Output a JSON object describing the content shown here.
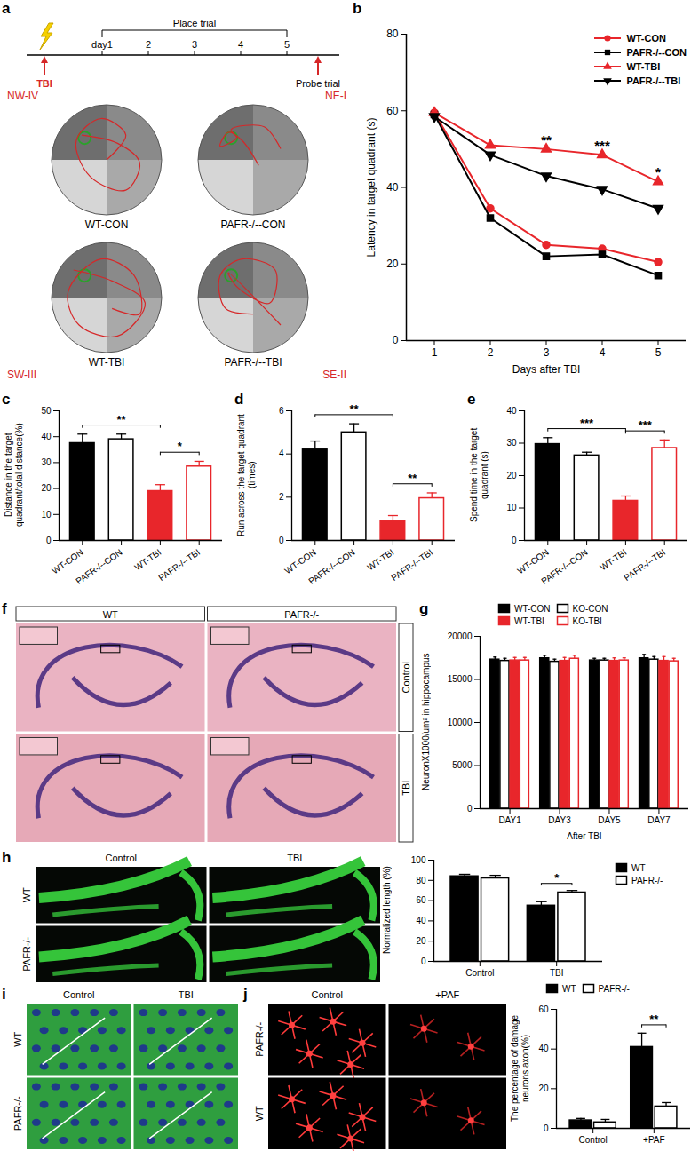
{
  "chart_data": [
    {
      "title": "b",
      "type": "line",
      "x_label": "Days after TBI",
      "y_label": "Latency in target quadrant (s)",
      "x": [
        1,
        2,
        3,
        4,
        5
      ],
      "xlim": [
        0.5,
        5.5
      ],
      "xticks": [
        1,
        2,
        3,
        4,
        5
      ],
      "ylim": [
        0,
        80
      ],
      "yticks": [
        0,
        20,
        40,
        60,
        80
      ],
      "legend": "top-right",
      "series": [
        {
          "name": "WT-CON",
          "color": "#e8262b",
          "marker": "circle",
          "values": [
            59.5,
            34.5,
            25,
            24,
            20.5
          ]
        },
        {
          "name": "PAFR-/--CON",
          "color": "#000000",
          "marker": "square",
          "values": [
            59,
            32,
            22,
            22.5,
            17
          ]
        },
        {
          "name": "WT-TBI",
          "color": "#e8262b",
          "marker": "triangle",
          "values": [
            59.5,
            51,
            50,
            48.5,
            41.5
          ]
        },
        {
          "name": "PAFR-/--TBI",
          "color": "#000000",
          "marker": "triangle-down",
          "values": [
            58.5,
            48.5,
            43,
            39.5,
            34.5
          ]
        }
      ],
      "annotations": [
        {
          "x": 3,
          "text": "**"
        },
        {
          "x": 4,
          "text": "***"
        },
        {
          "x": 5,
          "text": "*"
        }
      ]
    },
    {
      "title": "c",
      "type": "bar",
      "y_label": "Distance in the target quadrant/total distance(%)",
      "categories": [
        "WT-CON",
        "PAFR-/--CON",
        "WT-TBI",
        "PAFR-/--TBI"
      ],
      "values": [
        37.5,
        39,
        19,
        28.5
      ],
      "errors": [
        3.5,
        2,
        2.5,
        2
      ],
      "colors": [
        "#000000",
        "#ffffff",
        "#e8262b",
        "#ffffff"
      ],
      "ylim": [
        0,
        50
      ],
      "yticks": [
        0,
        10,
        20,
        30,
        40,
        50
      ],
      "annotations": [
        {
          "from": "WT-CON",
          "to": "WT-TBI",
          "text": "**"
        },
        {
          "from": "WT-TBI",
          "to": "PAFR-/--TBI",
          "text": "*"
        }
      ]
    },
    {
      "title": "d",
      "type": "bar",
      "y_label": "Run across the target quadrant (times)",
      "categories": [
        "WT-CON",
        "PAFR-/--CON",
        "WT-TBI",
        "PAFR-/--TBI"
      ],
      "values": [
        4.2,
        5.0,
        0.9,
        1.95
      ],
      "errors": [
        0.4,
        0.4,
        0.25,
        0.25
      ],
      "colors": [
        "#000000",
        "#ffffff",
        "#e8262b",
        "#ffffff"
      ],
      "ylim": [
        0,
        6
      ],
      "yticks": [
        0,
        2,
        4,
        6
      ],
      "annotations": [
        {
          "from": "WT-CON",
          "to": "WT-TBI",
          "text": "**"
        },
        {
          "from": "WT-TBI",
          "to": "PAFR-/--TBI",
          "text": "**"
        }
      ]
    },
    {
      "title": "e",
      "type": "bar",
      "y_label": "Spend time in the target quadrant (s)",
      "categories": [
        "WT-CON",
        "PAFR-/--CON",
        "WT-TBI",
        "PAFR-/--TBI"
      ],
      "values": [
        29.7,
        26.2,
        12.2,
        28.5
      ],
      "errors": [
        2,
        1,
        1.5,
        2.5
      ],
      "colors": [
        "#000000",
        "#ffffff",
        "#e8262b",
        "#ffffff"
      ],
      "ylim": [
        0,
        40
      ],
      "yticks": [
        0,
        10,
        20,
        30,
        40
      ],
      "annotations": [
        {
          "from": "WT-CON",
          "to": "WT-TBI",
          "text": "***"
        },
        {
          "from": "WT-TBI",
          "to": "PAFR-/--TBI",
          "text": "***"
        }
      ]
    },
    {
      "title": "g",
      "type": "bar",
      "x_label": "After TBI",
      "y_label": "NeuronX1000/um² in hippocampus",
      "categories": [
        "DAY1",
        "DAY3",
        "DAY5",
        "DAY7"
      ],
      "ylim": [
        0,
        20000
      ],
      "yticks": [
        0,
        5000,
        10000,
        15000,
        20000
      ],
      "legend": "top",
      "series": [
        {
          "name": "WT-CON",
          "color": "#000000",
          "values": [
            17300,
            17450,
            17200,
            17450
          ],
          "errors": [
            300,
            350,
            250,
            450
          ]
        },
        {
          "name": "KO-CON",
          "color": "#ffffff",
          "values": [
            17150,
            17050,
            17200,
            17300
          ],
          "errors": [
            300,
            300,
            250,
            350
          ]
        },
        {
          "name": "WT-TBI",
          "color": "#e8262b",
          "values": [
            17200,
            17150,
            17150,
            17150
          ],
          "errors": [
            350,
            400,
            350,
            500
          ]
        },
        {
          "name": "KO-TBI",
          "color": "#ffffff",
          "values": [
            17200,
            17400,
            17200,
            17100
          ],
          "errors": [
            350,
            400,
            300,
            350
          ]
        }
      ]
    },
    {
      "type": "bar",
      "y_label": "Normalized length (%)",
      "categories": [
        "Control",
        "TBI"
      ],
      "ylim": [
        0,
        100
      ],
      "yticks": [
        0,
        20,
        40,
        60,
        80,
        100
      ],
      "legend": "right",
      "series": [
        {
          "name": "WT",
          "color": "#000000",
          "values": [
            84,
            55
          ],
          "errors": [
            2,
            4
          ]
        },
        {
          "name": "PAFR-/-",
          "color": "#ffffff",
          "values": [
            82,
            68
          ],
          "errors": [
            3,
            2
          ]
        }
      ],
      "annotations": [
        {
          "category": "TBI",
          "text": "*"
        }
      ]
    },
    {
      "type": "bar",
      "y_label": "The percentage of damage neurons axon(%)",
      "categories": [
        "Control",
        "+PAF"
      ],
      "ylim": [
        0,
        60
      ],
      "yticks": [
        0,
        20,
        40,
        60
      ],
      "legend": "top",
      "series": [
        {
          "name": "WT",
          "color": "#000000",
          "values": [
            4,
            41
          ],
          "errors": [
            1,
            7
          ]
        },
        {
          "name": "PAFR-/-",
          "color": "#ffffff",
          "values": [
            3,
            11
          ],
          "errors": [
            1.5,
            2
          ]
        }
      ],
      "annotations": [
        {
          "category": "+PAF",
          "text": "**"
        }
      ]
    }
  ],
  "image_panels": [
    {
      "title": "a",
      "timeline": {
        "event": "TBI",
        "days": [
          "day1",
          "2",
          "3",
          "4",
          "5"
        ],
        "phase": "Place trial",
        "test": "Probe trial"
      },
      "quadrants": [
        "NW-IV",
        "NE-I",
        "SW-III",
        "SE-II"
      ],
      "mazes": [
        "WT-CON",
        "PAFR-/--CON",
        "WT-TBI",
        "PAFR-/--TBI"
      ]
    },
    {
      "title": "f",
      "columns": [
        "WT",
        "PAFR-/-"
      ],
      "rows": [
        "Control",
        "TBI"
      ]
    },
    {
      "title": "h",
      "columns": [
        "Control",
        "TBI"
      ],
      "rows": [
        "WT",
        "PAFR-/-"
      ]
    },
    {
      "title": "i",
      "columns": [
        "Control",
        "TBI"
      ],
      "rows": [
        "WT",
        "PAFR-/-"
      ]
    },
    {
      "title": "j",
      "columns": [
        "Control",
        "+PAF"
      ],
      "rows": [
        "PAFR-/-",
        "WT"
      ]
    }
  ]
}
